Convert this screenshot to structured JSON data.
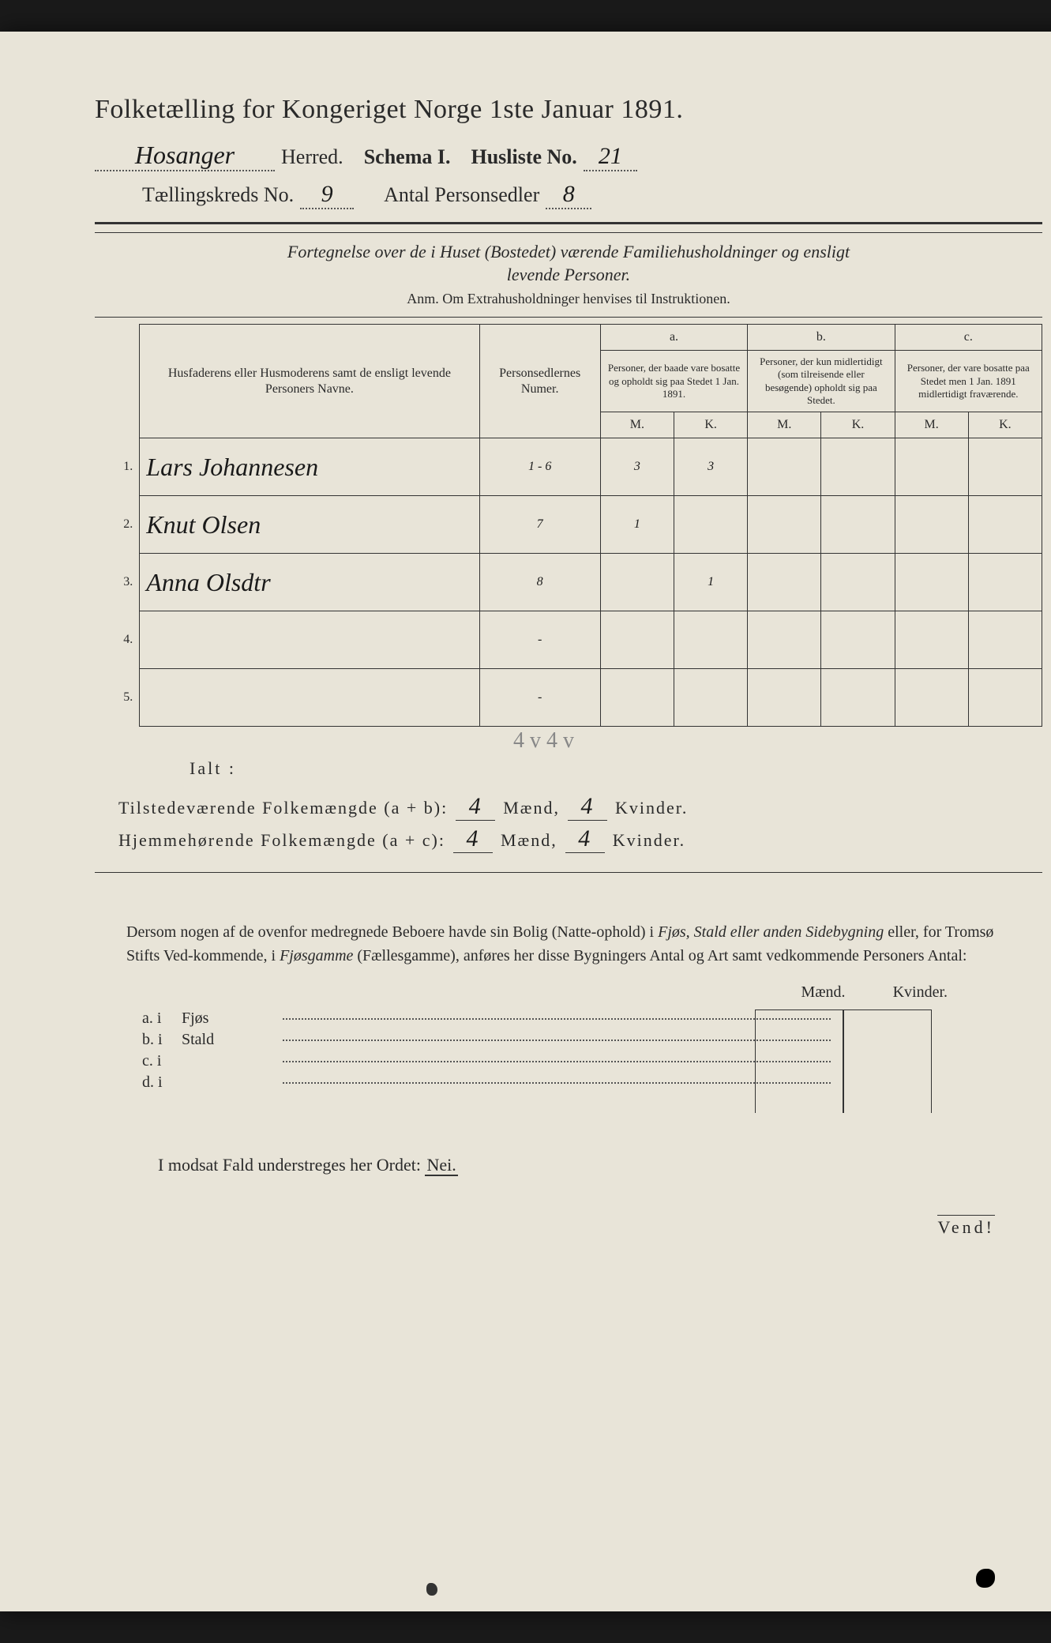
{
  "header": {
    "title": "Folketælling for Kongeriget Norge 1ste Januar 1891.",
    "herred_value": "Hosanger",
    "herred_label": "Herred.",
    "schema_label": "Schema I.",
    "husliste_label": "Husliste No.",
    "husliste_value": "21",
    "kreds_label": "Tællingskreds No.",
    "kreds_value": "9",
    "antal_label": "Antal Personsedler",
    "antal_value": "8"
  },
  "description": {
    "line1": "Fortegnelse over de i Huset (Bostedet) værende Familiehusholdninger og ensligt",
    "line2": "levende Personer.",
    "anm": "Anm. Om Extrahusholdninger henvises til Instruktionen."
  },
  "table": {
    "col_name": "Husfaderens eller Husmoderens samt de ensligt levende Personers Navne.",
    "col_numer": "Personsedlernes Numer.",
    "col_a_top": "a.",
    "col_a": "Personer, der baade vare bosatte og opholdt sig paa Stedet 1 Jan. 1891.",
    "col_b_top": "b.",
    "col_b": "Personer, der kun midlertidigt (som tilreisende eller besøgende) opholdt sig paa Stedet.",
    "col_c_top": "c.",
    "col_c": "Personer, der vare bosatte paa Stedet men 1 Jan. 1891 midlertidigt fraværende.",
    "m": "M.",
    "k": "K.",
    "rows": [
      {
        "n": "1.",
        "name": "Lars Johannesen",
        "numer": "1 - 6",
        "a_m": "3",
        "a_k": "3",
        "b_m": "",
        "b_k": "",
        "c_m": "",
        "c_k": ""
      },
      {
        "n": "2.",
        "name": "Knut Olsen",
        "numer": "7",
        "a_m": "1",
        "a_k": "",
        "b_m": "",
        "b_k": "",
        "c_m": "",
        "c_k": ""
      },
      {
        "n": "3.",
        "name": "Anna Olsdtr",
        "numer": "8",
        "a_m": "",
        "a_k": "1",
        "b_m": "",
        "b_k": "",
        "c_m": "",
        "c_k": ""
      },
      {
        "n": "4.",
        "name": "",
        "numer": "-",
        "a_m": "",
        "a_k": "",
        "b_m": "",
        "b_k": "",
        "c_m": "",
        "c_k": ""
      },
      {
        "n": "5.",
        "name": "",
        "numer": "-",
        "a_m": "",
        "a_k": "",
        "b_m": "",
        "b_k": "",
        "c_m": "",
        "c_k": ""
      }
    ]
  },
  "ialt": {
    "label": "Ialt :",
    "pencil_note": "4 v 4 v"
  },
  "totals": {
    "line1_label": "Tilstedeværende Folkemængde (a + b):",
    "line2_label": "Hjemmehørende Folkemængde (a + c):",
    "maend_label": "Mænd,",
    "kvinder_label": "Kvinder.",
    "line1_m": "4",
    "line1_k": "4",
    "line2_m": "4",
    "line2_k": "4"
  },
  "paragraph": {
    "text1": "Dersom nogen af de ovenfor medregnede Beboere havde sin Bolig (Natte-ophold) i ",
    "ital1": "Fjøs, Stald eller anden Sidebygning",
    "text2": " eller, for Tromsø Stifts Ved-kommende, i ",
    "ital2": "Fjøsgamme",
    "text3": " (Fællesgamme), anføres her disse Bygningers Antal og Art samt vedkommende Personers Antal:"
  },
  "outbuildings": {
    "maend": "Mænd.",
    "kvinder": "Kvinder.",
    "rows": [
      {
        "prefix": "a. i",
        "label": "Fjøs"
      },
      {
        "prefix": "b. i",
        "label": "Stald"
      },
      {
        "prefix": "c. i",
        "label": ""
      },
      {
        "prefix": "d. i",
        "label": ""
      }
    ]
  },
  "nei": {
    "text": "I modsat Fald understreges her Ordet: ",
    "word": "Nei."
  },
  "vend": "Vend!",
  "colors": {
    "paper": "#e8e4d8",
    "ink": "#2a2a2a",
    "background": "#1a1a1a",
    "pencil": "#888888"
  }
}
